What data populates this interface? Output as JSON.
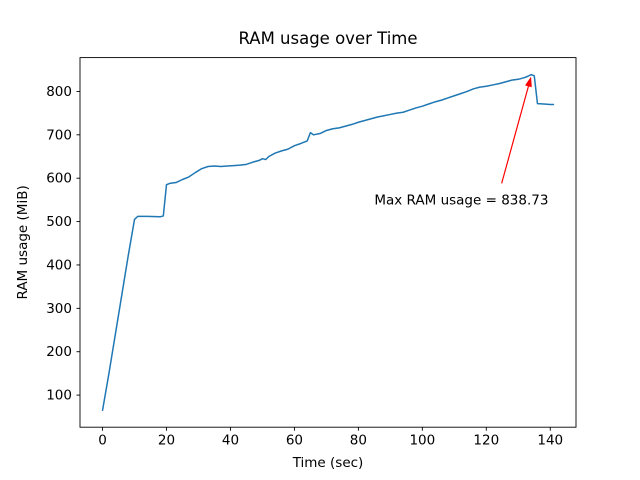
{
  "figure": {
    "background": "#ffffff",
    "title": "RAM usage over Time",
    "xlabel": "Time (sec)",
    "ylabel": "RAM usage (MiB)"
  },
  "chart_data": {
    "type": "line",
    "title": "RAM usage over Time",
    "xlabel": "Time (sec)",
    "ylabel": "RAM usage (MiB)",
    "grid": false,
    "legend": "none",
    "line_color": "#1f77b4",
    "line_width": 1.5,
    "xlim": [
      -7.05,
      148.05
    ],
    "ylim": [
      26,
      878
    ],
    "xticks": [
      0,
      20,
      40,
      60,
      80,
      100,
      120,
      140
    ],
    "yticks": [
      100,
      200,
      300,
      400,
      500,
      600,
      700,
      800
    ],
    "points": [
      [
        0,
        65
      ],
      [
        2,
        150
      ],
      [
        4,
        240
      ],
      [
        6,
        330
      ],
      [
        8,
        420
      ],
      [
        10,
        505
      ],
      [
        11,
        512
      ],
      [
        14,
        512
      ],
      [
        18,
        511
      ],
      [
        19,
        513
      ],
      [
        20,
        585
      ],
      [
        21,
        588
      ],
      [
        23,
        590
      ],
      [
        25,
        597
      ],
      [
        27,
        603
      ],
      [
        29,
        613
      ],
      [
        31,
        622
      ],
      [
        33,
        627
      ],
      [
        35,
        628
      ],
      [
        37,
        627
      ],
      [
        39,
        628
      ],
      [
        41,
        629
      ],
      [
        43,
        630
      ],
      [
        45,
        632
      ],
      [
        47,
        637
      ],
      [
        49,
        641
      ],
      [
        50,
        645
      ],
      [
        51,
        643
      ],
      [
        52,
        650
      ],
      [
        54,
        658
      ],
      [
        56,
        663
      ],
      [
        58,
        667
      ],
      [
        60,
        675
      ],
      [
        62,
        680
      ],
      [
        63,
        683
      ],
      [
        64,
        686
      ],
      [
        65,
        705
      ],
      [
        66,
        700
      ],
      [
        68,
        703
      ],
      [
        70,
        710
      ],
      [
        72,
        714
      ],
      [
        74,
        716
      ],
      [
        76,
        720
      ],
      [
        78,
        724
      ],
      [
        80,
        729
      ],
      [
        82,
        733
      ],
      [
        84,
        737
      ],
      [
        86,
        741
      ],
      [
        88,
        744
      ],
      [
        90,
        747
      ],
      [
        92,
        750
      ],
      [
        94,
        752
      ],
      [
        96,
        757
      ],
      [
        98,
        762
      ],
      [
        100,
        766
      ],
      [
        102,
        771
      ],
      [
        104,
        776
      ],
      [
        106,
        780
      ],
      [
        108,
        785
      ],
      [
        110,
        790
      ],
      [
        112,
        795
      ],
      [
        114,
        800
      ],
      [
        116,
        806
      ],
      [
        118,
        810
      ],
      [
        120,
        812
      ],
      [
        122,
        815
      ],
      [
        124,
        818
      ],
      [
        126,
        822
      ],
      [
        128,
        826
      ],
      [
        130,
        828
      ],
      [
        132,
        832
      ],
      [
        133,
        835
      ],
      [
        134,
        838.73
      ],
      [
        135,
        836
      ],
      [
        136,
        772
      ],
      [
        138,
        771
      ],
      [
        140,
        770
      ],
      [
        141,
        770
      ]
    ],
    "max_value": 838.73,
    "annotation": {
      "text": "Max RAM usage = 838.73",
      "color": "#ff0000",
      "point": [
        134,
        838.73
      ],
      "text_pos": [
        85,
        549
      ],
      "arrow_start": [
        124.8,
        588
      ]
    }
  }
}
